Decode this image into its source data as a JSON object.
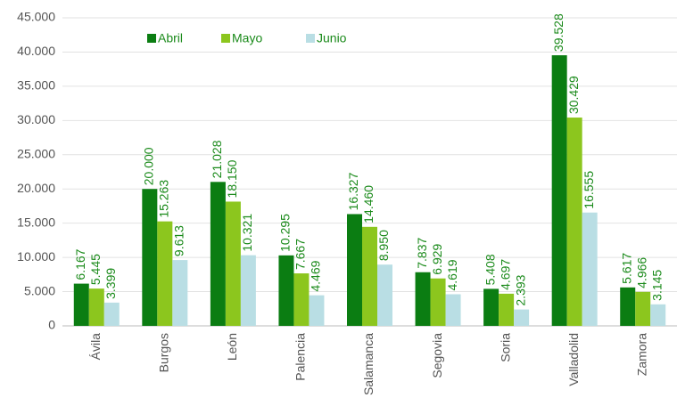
{
  "chart_data": {
    "type": "bar",
    "categories": [
      "Ávila",
      "Burgos",
      "León",
      "Palencia",
      "Salamanca",
      "Segovia",
      "Soria",
      "Valladolid",
      "Zamora"
    ],
    "series": [
      {
        "name": "Abril",
        "color": "#0b7d12",
        "values": [
          6167,
          20000,
          21028,
          10295,
          16327,
          7837,
          5408,
          39528,
          5617
        ],
        "value_labels": [
          "6.167",
          "20.000",
          "21.028",
          "10.295",
          "16.327",
          "7.837",
          "5.408",
          "39.528",
          "5.617"
        ]
      },
      {
        "name": "Mayo",
        "color": "#8cc61e",
        "values": [
          5445,
          15263,
          18150,
          7667,
          14460,
          6929,
          4697,
          30429,
          4966
        ],
        "value_labels": [
          "5.445",
          "15.263",
          "18.150",
          "7.667",
          "14.460",
          "6.929",
          "4.697",
          "30.429",
          "4.966"
        ]
      },
      {
        "name": "Junio",
        "color": "#b9dee4",
        "values": [
          3399,
          9613,
          10321,
          4469,
          8950,
          4619,
          2393,
          16555,
          3145
        ],
        "value_labels": [
          "3.399",
          "9.613",
          "10.321",
          "4.469",
          "8.950",
          "4.619",
          "2.393",
          "16.555",
          "3.145"
        ]
      }
    ],
    "ylim": [
      0,
      45000
    ],
    "yticks": [
      0,
      {
        "value": 5000,
        "label": "5.000"
      },
      {
        "value": 10000,
        "label": "10.000"
      },
      {
        "value": 15000,
        "label": "15.000"
      },
      {
        "value": 20000,
        "label": "20.000"
      },
      {
        "value": 25000,
        "label": "25.000"
      },
      {
        "value": 30000,
        "label": "30.000"
      },
      {
        "value": 35000,
        "label": "35.000"
      },
      {
        "value": 40000,
        "label": "40.000"
      },
      {
        "value": 45000,
        "label": "45.000"
      }
    ],
    "grid": true,
    "legend": "top"
  }
}
